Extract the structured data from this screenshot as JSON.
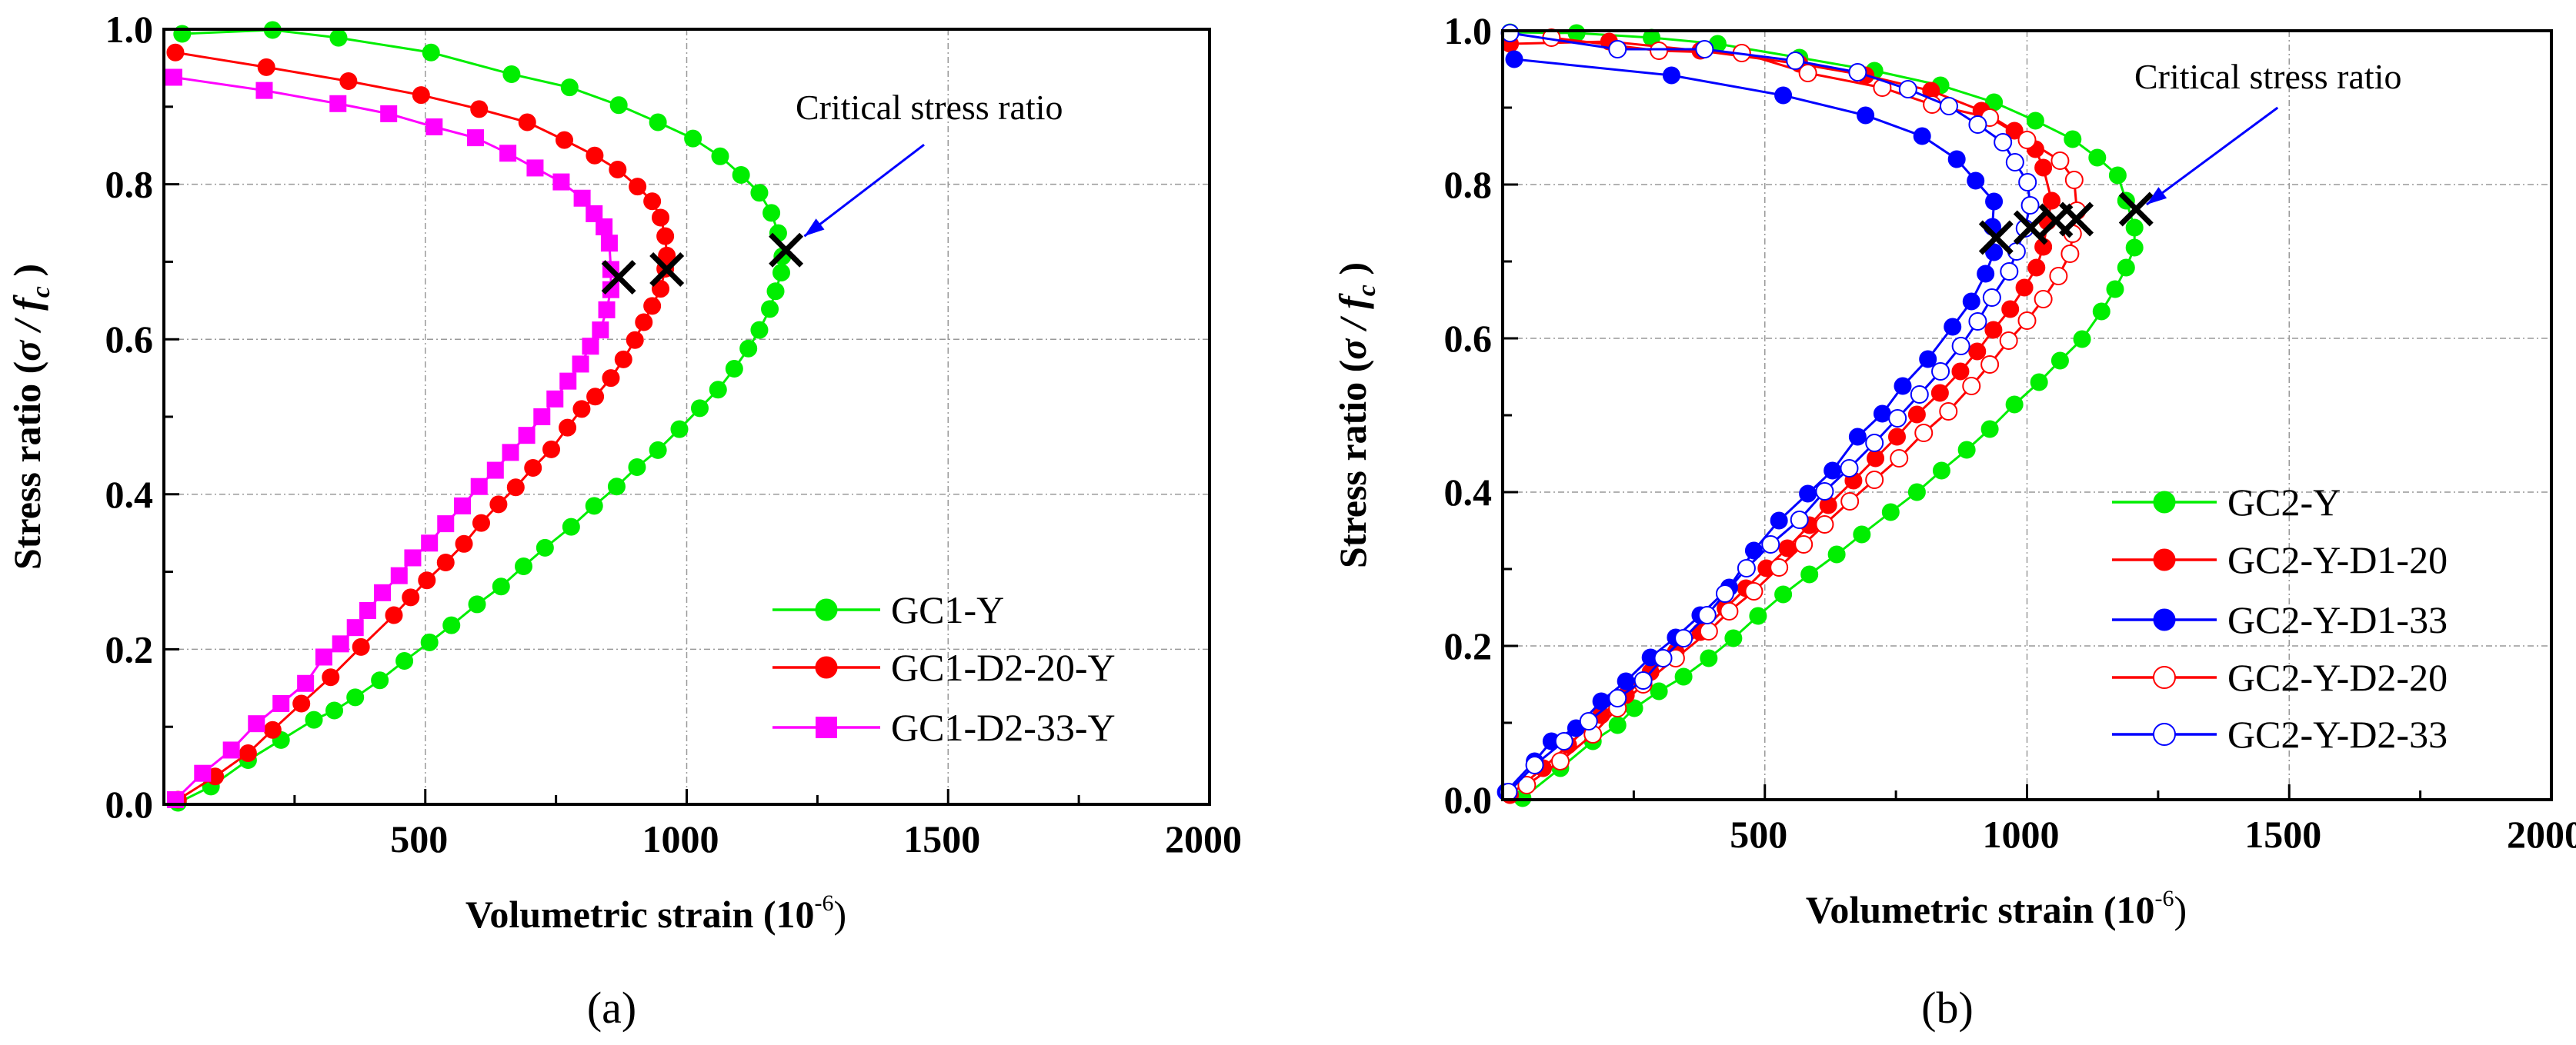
{
  "chart_data": [
    {
      "type": "line",
      "panel_caption": "(a)",
      "xlabel": "Volumetric strain (10",
      "xlabel_sup": "-6",
      "xlabel_end": ")",
      "ylabel": "Stress ratio (",
      "ylabel_sigma": "σ / ",
      "ylabel_f": "f",
      "ylabel_sub": "c",
      "ylabel_end": " )",
      "xlim": [
        0,
        2000
      ],
      "ylim": [
        0,
        1.0
      ],
      "xticks": [
        500,
        1000,
        1500,
        2000
      ],
      "xtick_labels": [
        "500",
        "1000",
        "1500",
        "2000"
      ],
      "yticks": [
        0.0,
        0.2,
        0.4,
        0.6,
        0.8,
        1.0
      ],
      "ytick_labels": [
        "0.0",
        "0.2",
        "0.4",
        "0.6",
        "0.8",
        "1.0"
      ],
      "grid": true,
      "legend_position": "bottom-right",
      "annotation": {
        "text": "Critical stress ratio",
        "arrow_from": [
          1454,
          0.851
        ],
        "arrow_to": [
          1225,
          0.733
        ],
        "arrow_color": "#0000ff"
      },
      "critical_points": [
        [
          870,
          0.68
        ],
        [
          962,
          0.69
        ],
        [
          1190,
          0.715
        ]
      ],
      "series": [
        {
          "name": "GC1-Y",
          "color": "#00ee00",
          "marker": "circle",
          "filled": true,
          "x": [
            27,
            90,
            161,
            224,
            287,
            326,
            366,
            413,
            460,
            508,
            550,
            599,
            645,
            688,
            729,
            779,
            823,
            866,
            905,
            945,
            986,
            1025,
            1060,
            1091,
            1118,
            1139,
            1159,
            1170,
            1181,
            1183,
            1175,
            1162,
            1139,
            1104,
            1064,
            1012,
            945,
            870,
            776,
            665,
            511,
            334,
            208,
            35
          ],
          "y": [
            0.002,
            0.023,
            0.057,
            0.083,
            0.109,
            0.121,
            0.138,
            0.16,
            0.185,
            0.209,
            0.231,
            0.258,
            0.281,
            0.307,
            0.331,
            0.358,
            0.385,
            0.41,
            0.435,
            0.457,
            0.484,
            0.511,
            0.535,
            0.562,
            0.588,
            0.612,
            0.639,
            0.662,
            0.686,
            0.707,
            0.737,
            0.763,
            0.789,
            0.812,
            0.836,
            0.859,
            0.88,
            0.902,
            0.925,
            0.942,
            0.97,
            0.989,
            0.999,
            0.994
          ]
        },
        {
          "name": "GC1-D2-20-Y",
          "color": "#ff0000",
          "marker": "circle",
          "filled": true,
          "x": [
            27,
            98,
            161,
            208,
            263,
            319,
            377,
            440,
            472,
            503,
            539,
            574,
            607,
            640,
            673,
            706,
            741,
            772,
            799,
            825,
            855,
            879,
            901,
            918,
            934,
            950,
            959,
            962,
            959,
            950,
            934,
            906,
            868,
            824,
            766,
            695,
            603,
            492,
            353,
            196,
            22
          ],
          "y": [
            0.006,
            0.036,
            0.066,
            0.096,
            0.13,
            0.164,
            0.203,
            0.244,
            0.267,
            0.289,
            0.312,
            0.336,
            0.363,
            0.387,
            0.409,
            0.434,
            0.458,
            0.486,
            0.51,
            0.526,
            0.55,
            0.574,
            0.599,
            0.622,
            0.643,
            0.665,
            0.691,
            0.708,
            0.733,
            0.757,
            0.778,
            0.797,
            0.819,
            0.837,
            0.857,
            0.88,
            0.897,
            0.915,
            0.933,
            0.951,
            0.97
          ]
        },
        {
          "name": "GC1-D2-33-Y",
          "color": "#ff00ff",
          "marker": "square",
          "filled": true,
          "x": [
            22,
            74,
            129,
            177,
            224,
            271,
            306,
            338,
            366,
            390,
            418,
            450,
            476,
            508,
            539,
            571,
            603,
            634,
            663,
            694,
            723,
            748,
            773,
            797,
            816,
            835,
            847,
            855,
            855,
            852,
            842,
            823,
            800,
            760,
            710,
            658,
            596,
            517,
            430,
            333,
            192,
            19
          ],
          "y": [
            0.006,
            0.04,
            0.07,
            0.104,
            0.13,
            0.156,
            0.19,
            0.207,
            0.228,
            0.25,
            0.273,
            0.295,
            0.318,
            0.337,
            0.362,
            0.385,
            0.41,
            0.431,
            0.454,
            0.476,
            0.5,
            0.523,
            0.546,
            0.568,
            0.591,
            0.612,
            0.638,
            0.664,
            0.69,
            0.724,
            0.745,
            0.762,
            0.782,
            0.803,
            0.821,
            0.84,
            0.86,
            0.874,
            0.891,
            0.904,
            0.921,
            0.938
          ]
        }
      ]
    },
    {
      "type": "line",
      "panel_caption": "(b)",
      "xlabel": "Volumetric strain (10",
      "xlabel_sup": "-6",
      "xlabel_end": ")",
      "ylabel": "Stress ratio (",
      "ylabel_sigma": "σ / ",
      "ylabel_f": "f",
      "ylabel_sub": "c",
      "ylabel_end": " )",
      "xlim": [
        0,
        2000
      ],
      "ylim": [
        0,
        1.0
      ],
      "xticks": [
        500,
        1000,
        1500,
        2000
      ],
      "xtick_labels": [
        "500",
        "1000",
        "1500",
        "2000"
      ],
      "yticks": [
        0.0,
        0.2,
        0.4,
        0.6,
        0.8,
        1.0
      ],
      "ytick_labels": [
        "0.0",
        "0.2",
        "0.4",
        "0.6",
        "0.8",
        "1.0"
      ],
      "grid": true,
      "legend_position": "bottom-right",
      "annotation": {
        "text": "Critical stress ratio",
        "arrow_from": [
          1478,
          0.9
        ],
        "arrow_to": [
          1228,
          0.774
        ],
        "arrow_color": "#0000ff"
      },
      "critical_points": [
        [
          941,
          0.731
        ],
        [
          1007,
          0.744
        ],
        [
          1055,
          0.753
        ],
        [
          1094,
          0.755
        ],
        [
          1208,
          0.768
        ]
      ],
      "series": [
        {
          "name": "GC2-Y",
          "color": "#00ee00",
          "marker": "circle",
          "filled": true,
          "x": [
            38,
            110,
            172,
            219,
            251,
            298,
            345,
            393,
            440,
            487,
            535,
            585,
            637,
            685,
            740,
            790,
            837,
            885,
            929,
            976,
            1023,
            1063,
            1105,
            1142,
            1168,
            1189,
            1205,
            1205,
            1189,
            1173,
            1134,
            1087,
            1016,
            937,
            835,
            709,
            566,
            410,
            284,
            141,
            14
          ],
          "y": [
            0.002,
            0.041,
            0.076,
            0.097,
            0.119,
            0.141,
            0.16,
            0.184,
            0.21,
            0.239,
            0.267,
            0.293,
            0.319,
            0.345,
            0.374,
            0.4,
            0.428,
            0.455,
            0.482,
            0.514,
            0.543,
            0.571,
            0.599,
            0.635,
            0.664,
            0.692,
            0.718,
            0.744,
            0.779,
            0.812,
            0.835,
            0.859,
            0.883,
            0.907,
            0.929,
            0.948,
            0.965,
            0.983,
            0.991,
            0.997,
            0.998
          ]
        },
        {
          "name": "GC2-Y-D1-20",
          "color": "#ff0000",
          "marker": "circle",
          "filled": true,
          "x": [
            14,
            77,
            125,
            188,
            235,
            282,
            330,
            377,
            425,
            464,
            503,
            543,
            585,
            621,
            669,
            711,
            752,
            790,
            834,
            873,
            905,
            936,
            968,
            995,
            1018,
            1031,
            1039,
            1047,
            1031,
            1016,
            976,
            913,
            817,
            692,
            566,
            377,
            203,
            14
          ],
          "y": [
            0.006,
            0.041,
            0.071,
            0.11,
            0.136,
            0.166,
            0.192,
            0.218,
            0.249,
            0.275,
            0.301,
            0.327,
            0.357,
            0.383,
            0.415,
            0.444,
            0.472,
            0.501,
            0.529,
            0.557,
            0.583,
            0.611,
            0.638,
            0.666,
            0.692,
            0.719,
            0.752,
            0.779,
            0.822,
            0.846,
            0.87,
            0.896,
            0.922,
            0.942,
            0.957,
            0.974,
            0.986,
            0.983
          ]
        },
        {
          "name": "GC2-Y-D1-33",
          "color": "#0000ff",
          "marker": "circle",
          "filled": true,
          "x": [
            6,
            61,
            93,
            140,
            188,
            235,
            282,
            330,
            377,
            432,
            479,
            527,
            582,
            629,
            677,
            724,
            763,
            811,
            858,
            894,
            921,
            937,
            934,
            937,
            902,
            866,
            800,
            692,
            535,
            322,
            22
          ],
          "y": [
            0.01,
            0.05,
            0.076,
            0.093,
            0.128,
            0.154,
            0.185,
            0.211,
            0.24,
            0.276,
            0.324,
            0.363,
            0.398,
            0.428,
            0.472,
            0.502,
            0.538,
            0.573,
            0.615,
            0.648,
            0.684,
            0.712,
            0.745,
            0.778,
            0.805,
            0.833,
            0.863,
            0.89,
            0.916,
            0.942,
            0.963
          ]
        },
        {
          "name": "GC2-Y-D2-20",
          "color": "#ff0000",
          "marker": "circle",
          "filled": false,
          "x": [
            46,
            110,
            172,
            219,
            268,
            330,
            393,
            432,
            479,
            527,
            574,
            614,
            662,
            709,
            756,
            803,
            850,
            894,
            929,
            965,
            1000,
            1031,
            1060,
            1082,
            1087,
            1095,
            1090,
            1063,
            1000,
            929,
            819,
            724,
            582,
            456,
            298,
            93
          ],
          "y": [
            0.019,
            0.05,
            0.085,
            0.119,
            0.15,
            0.184,
            0.219,
            0.245,
            0.271,
            0.302,
            0.332,
            0.358,
            0.388,
            0.416,
            0.444,
            0.477,
            0.505,
            0.538,
            0.566,
            0.597,
            0.623,
            0.651,
            0.681,
            0.71,
            0.736,
            0.766,
            0.806,
            0.831,
            0.858,
            0.887,
            0.904,
            0.926,
            0.945,
            0.971,
            0.974,
            0.991
          ]
        },
        {
          "name": "GC2-Y-D2-33",
          "color": "#0000ff",
          "marker": "circle",
          "filled": false,
          "x": [
            11,
            61,
            117,
            164,
            219,
            268,
            306,
            345,
            390,
            424,
            465,
            511,
            566,
            614,
            661,
            709,
            753,
            795,
            835,
            874,
            906,
            933,
            966,
            980,
            996,
            1006,
            1001,
            977,
            954,
            906,
            851,
            773,
            677,
            558,
            385,
            219,
            14
          ],
          "y": [
            0.01,
            0.045,
            0.076,
            0.102,
            0.132,
            0.155,
            0.184,
            0.21,
            0.24,
            0.268,
            0.301,
            0.332,
            0.364,
            0.401,
            0.431,
            0.464,
            0.496,
            0.527,
            0.557,
            0.59,
            0.622,
            0.653,
            0.687,
            0.713,
            0.743,
            0.773,
            0.803,
            0.829,
            0.855,
            0.878,
            0.902,
            0.924,
            0.946,
            0.961,
            0.976,
            0.976,
            0.997
          ]
        }
      ]
    }
  ]
}
